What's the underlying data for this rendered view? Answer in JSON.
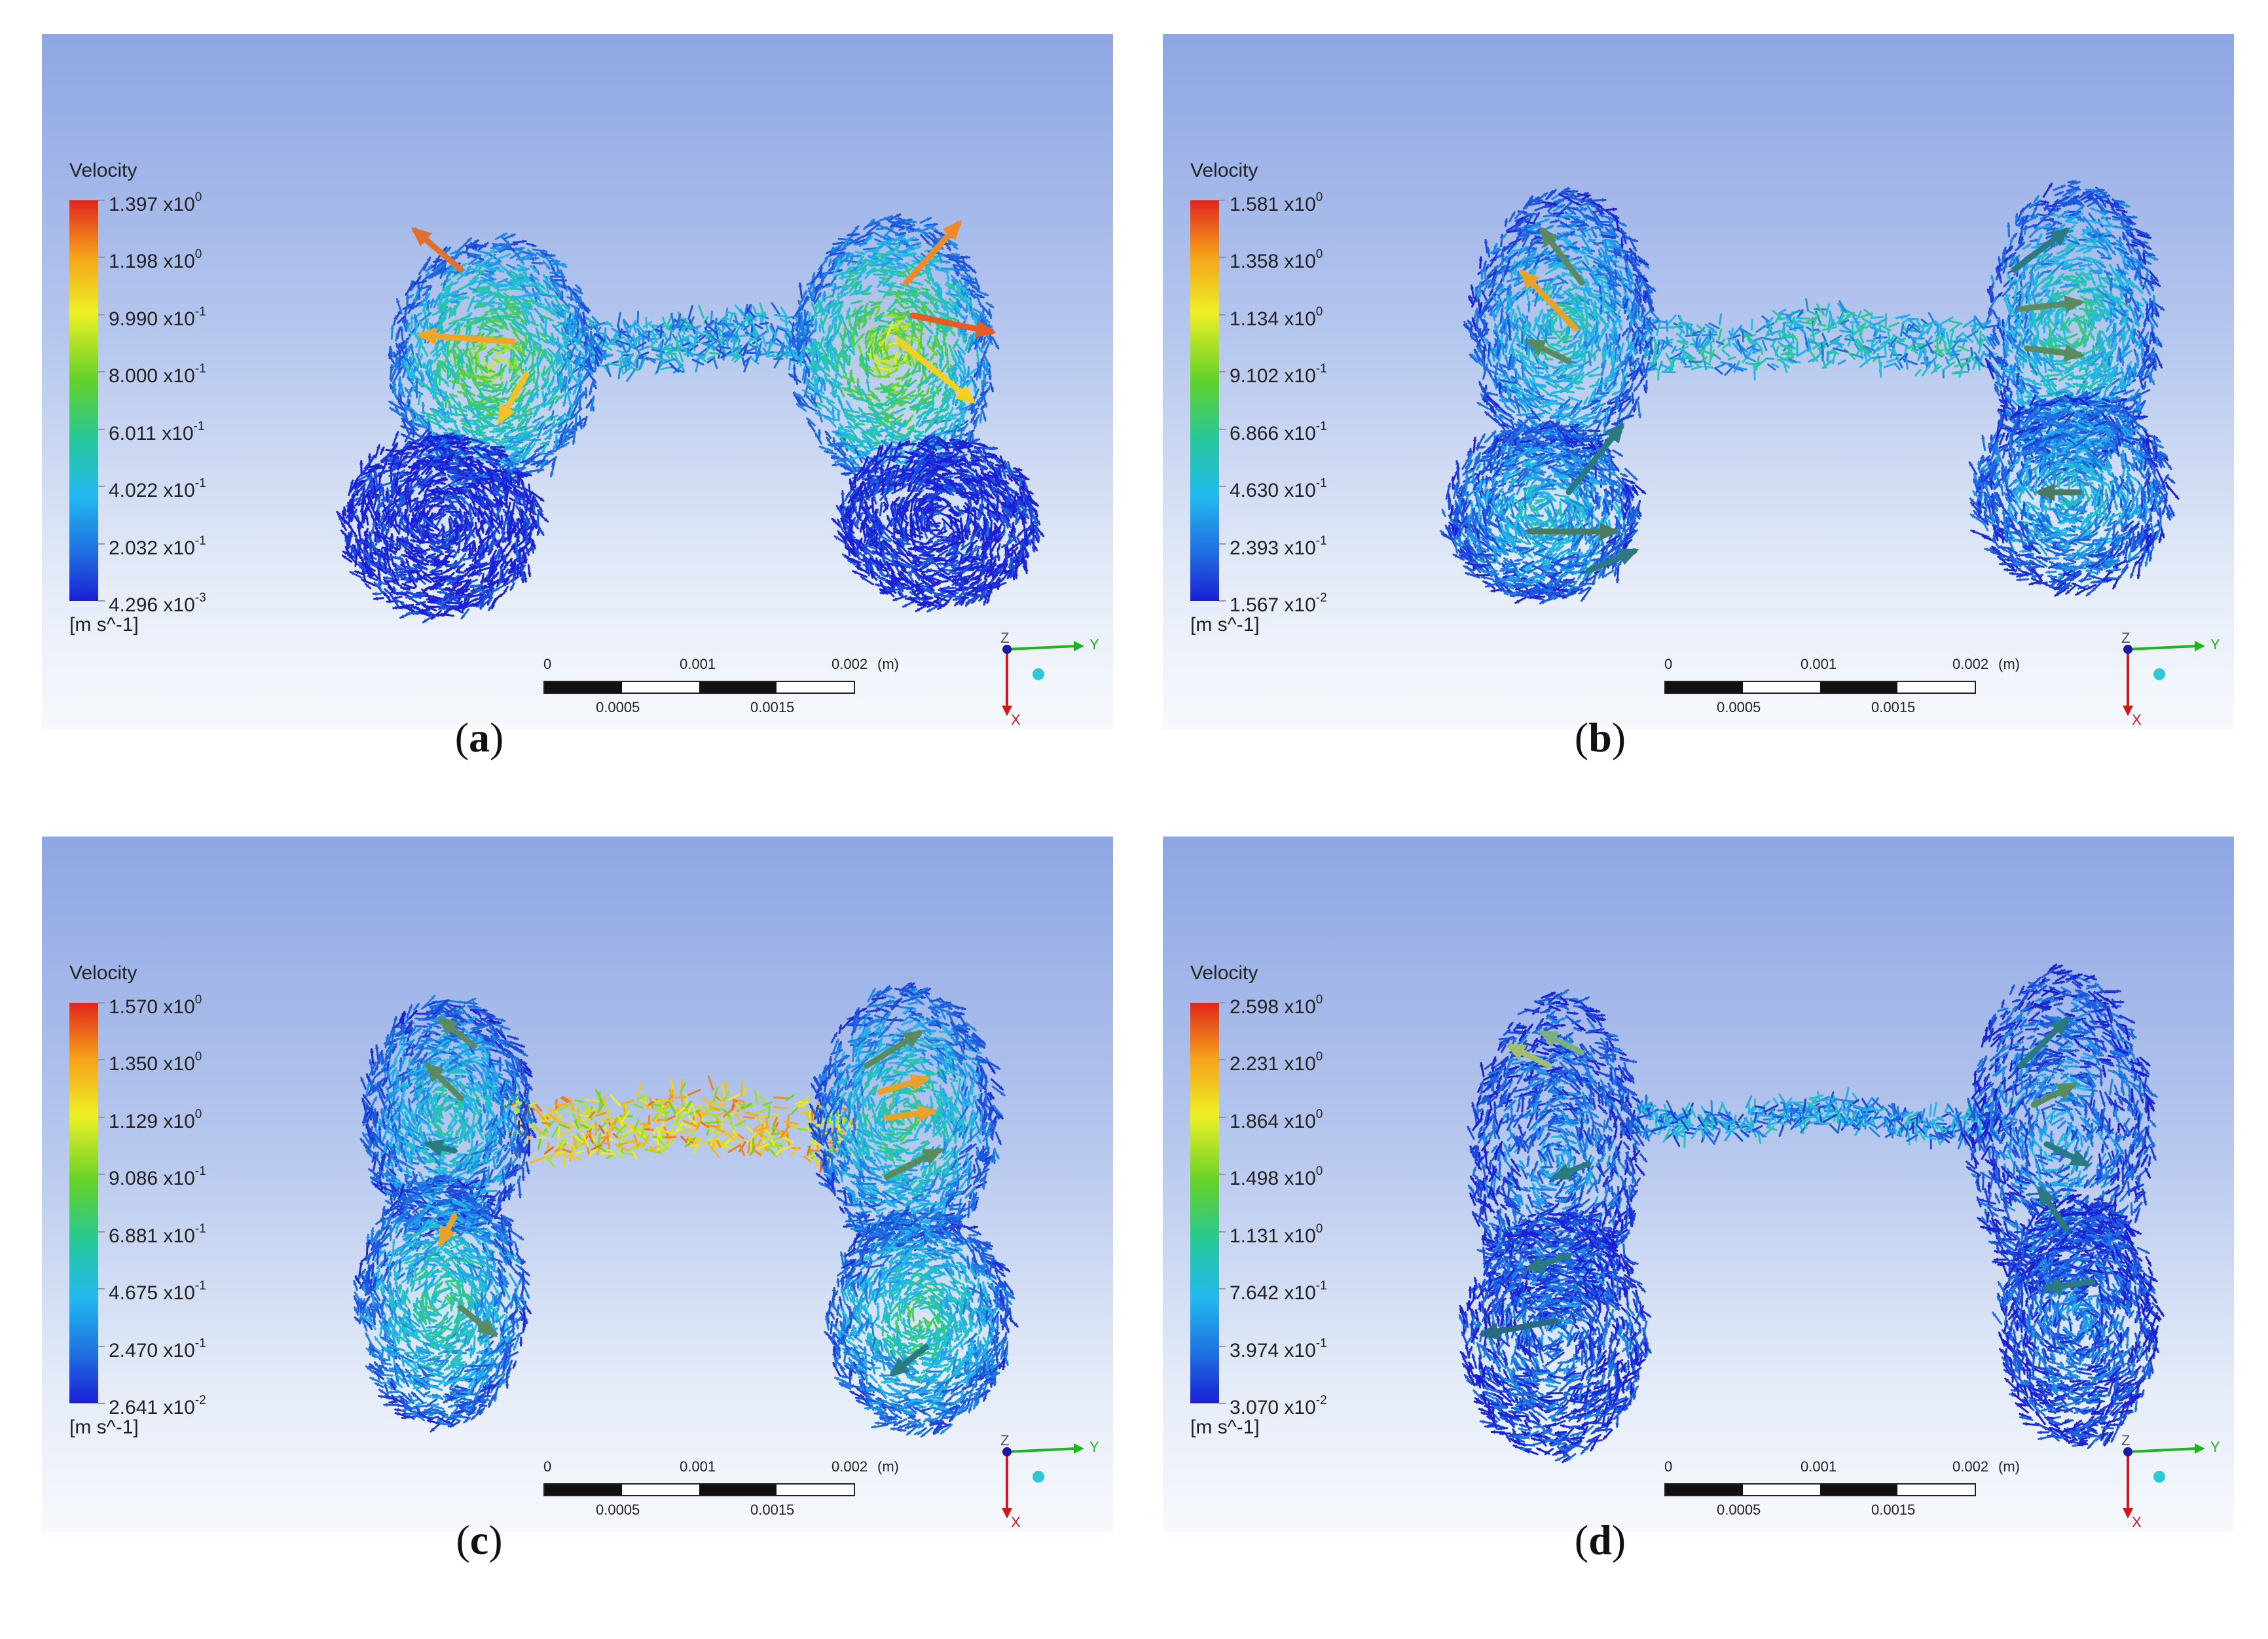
{
  "panels": [
    {
      "caption_open": "(",
      "caption_letter": "a",
      "caption_close": ")",
      "legend_title": "Velocity",
      "ticks": [
        {
          "mantissa": "1.397",
          "exp_base": "x10",
          "exp": "0"
        },
        {
          "mantissa": "1.198",
          "exp_base": "x10",
          "exp": "0"
        },
        {
          "mantissa": "9.990",
          "exp_base": "x10",
          "exp": "-1"
        },
        {
          "mantissa": "8.000",
          "exp_base": "x10",
          "exp": "-1"
        },
        {
          "mantissa": "6.011",
          "exp_base": "x10",
          "exp": "-1"
        },
        {
          "mantissa": "4.022",
          "exp_base": "x10",
          "exp": "-1"
        },
        {
          "mantissa": "2.032",
          "exp_base": "x10",
          "exp": "-1"
        },
        {
          "mantissa": "4.296",
          "exp_base": "x10",
          "exp": "-3"
        }
      ],
      "unit": "[m s^-1]",
      "style": "a"
    },
    {
      "caption_open": "(",
      "caption_letter": "b",
      "caption_close": ")",
      "legend_title": "Velocity",
      "ticks": [
        {
          "mantissa": "1.581",
          "exp_base": "x10",
          "exp": "0"
        },
        {
          "mantissa": "1.358",
          "exp_base": "x10",
          "exp": "0"
        },
        {
          "mantissa": "1.134",
          "exp_base": "x10",
          "exp": "0"
        },
        {
          "mantissa": "9.102",
          "exp_base": "x10",
          "exp": "-1"
        },
        {
          "mantissa": "6.866",
          "exp_base": "x10",
          "exp": "-1"
        },
        {
          "mantissa": "4.630",
          "exp_base": "x10",
          "exp": "-1"
        },
        {
          "mantissa": "2.393",
          "exp_base": "x10",
          "exp": "-1"
        },
        {
          "mantissa": "1.567",
          "exp_base": "x10",
          "exp": "-2"
        }
      ],
      "unit": "[m s^-1]",
      "style": "b"
    },
    {
      "caption_open": "(",
      "caption_letter": "c",
      "caption_close": ")",
      "legend_title": "Velocity",
      "ticks": [
        {
          "mantissa": "1.570",
          "exp_base": "x10",
          "exp": "0"
        },
        {
          "mantissa": "1.350",
          "exp_base": "x10",
          "exp": "0"
        },
        {
          "mantissa": "1.129",
          "exp_base": "x10",
          "exp": "0"
        },
        {
          "mantissa": "9.086",
          "exp_base": "x10",
          "exp": "-1"
        },
        {
          "mantissa": "6.881",
          "exp_base": "x10",
          "exp": "-1"
        },
        {
          "mantissa": "4.675",
          "exp_base": "x10",
          "exp": "-1"
        },
        {
          "mantissa": "2.470",
          "exp_base": "x10",
          "exp": "-1"
        },
        {
          "mantissa": "2.641",
          "exp_base": "x10",
          "exp": "-2"
        }
      ],
      "unit": "[m s^-1]",
      "style": "c"
    },
    {
      "caption_open": "(",
      "caption_letter": "d",
      "caption_close": ")",
      "legend_title": "Velocity",
      "ticks": [
        {
          "mantissa": "2.598",
          "exp_base": "x10",
          "exp": "0"
        },
        {
          "mantissa": "2.231",
          "exp_base": "x10",
          "exp": "0"
        },
        {
          "mantissa": "1.864",
          "exp_base": "x10",
          "exp": "0"
        },
        {
          "mantissa": "1.498",
          "exp_base": "x10",
          "exp": "0"
        },
        {
          "mantissa": "1.131",
          "exp_base": "x10",
          "exp": "0"
        },
        {
          "mantissa": "7.642",
          "exp_base": "x10",
          "exp": "-1"
        },
        {
          "mantissa": "3.974",
          "exp_base": "x10",
          "exp": "-1"
        },
        {
          "mantissa": "3.070",
          "exp_base": "x10",
          "exp": "-2"
        }
      ],
      "unit": "[m s^-1]",
      "style": "d"
    }
  ],
  "scalebar": {
    "top_labels": [
      "0",
      "0.001",
      "0.002",
      "(m)"
    ],
    "bottom_labels": [
      "0.0005",
      "0.0015"
    ]
  },
  "axes": {
    "x_label": "X",
    "y_label": "Y",
    "z_label": "Z"
  },
  "colors": {
    "bg_top": "#8ea6e4",
    "bg_bottom": "#f7f9fd",
    "colormap": [
      "#e0261c",
      "#f5a21a",
      "#eef026",
      "#62d12a",
      "#26c79c",
      "#22b8f0",
      "#1f6de0",
      "#1b1fd6"
    ],
    "x_axis": "#d01818",
    "y_axis": "#22b222",
    "z_axis": "#1a1aa0"
  }
}
